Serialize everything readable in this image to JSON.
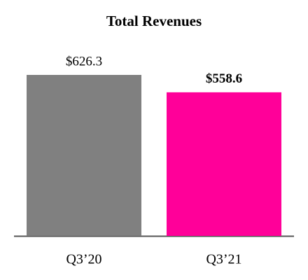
{
  "chart_data": {
    "type": "bar",
    "title": "Total Revenues",
    "categories": [
      "Q3’20",
      "Q3’21"
    ],
    "values": [
      626.3,
      558.6
    ],
    "value_labels": [
      "$626.3",
      "$558.6"
    ],
    "colors": [
      "#808080",
      "#ff0099"
    ]
  }
}
